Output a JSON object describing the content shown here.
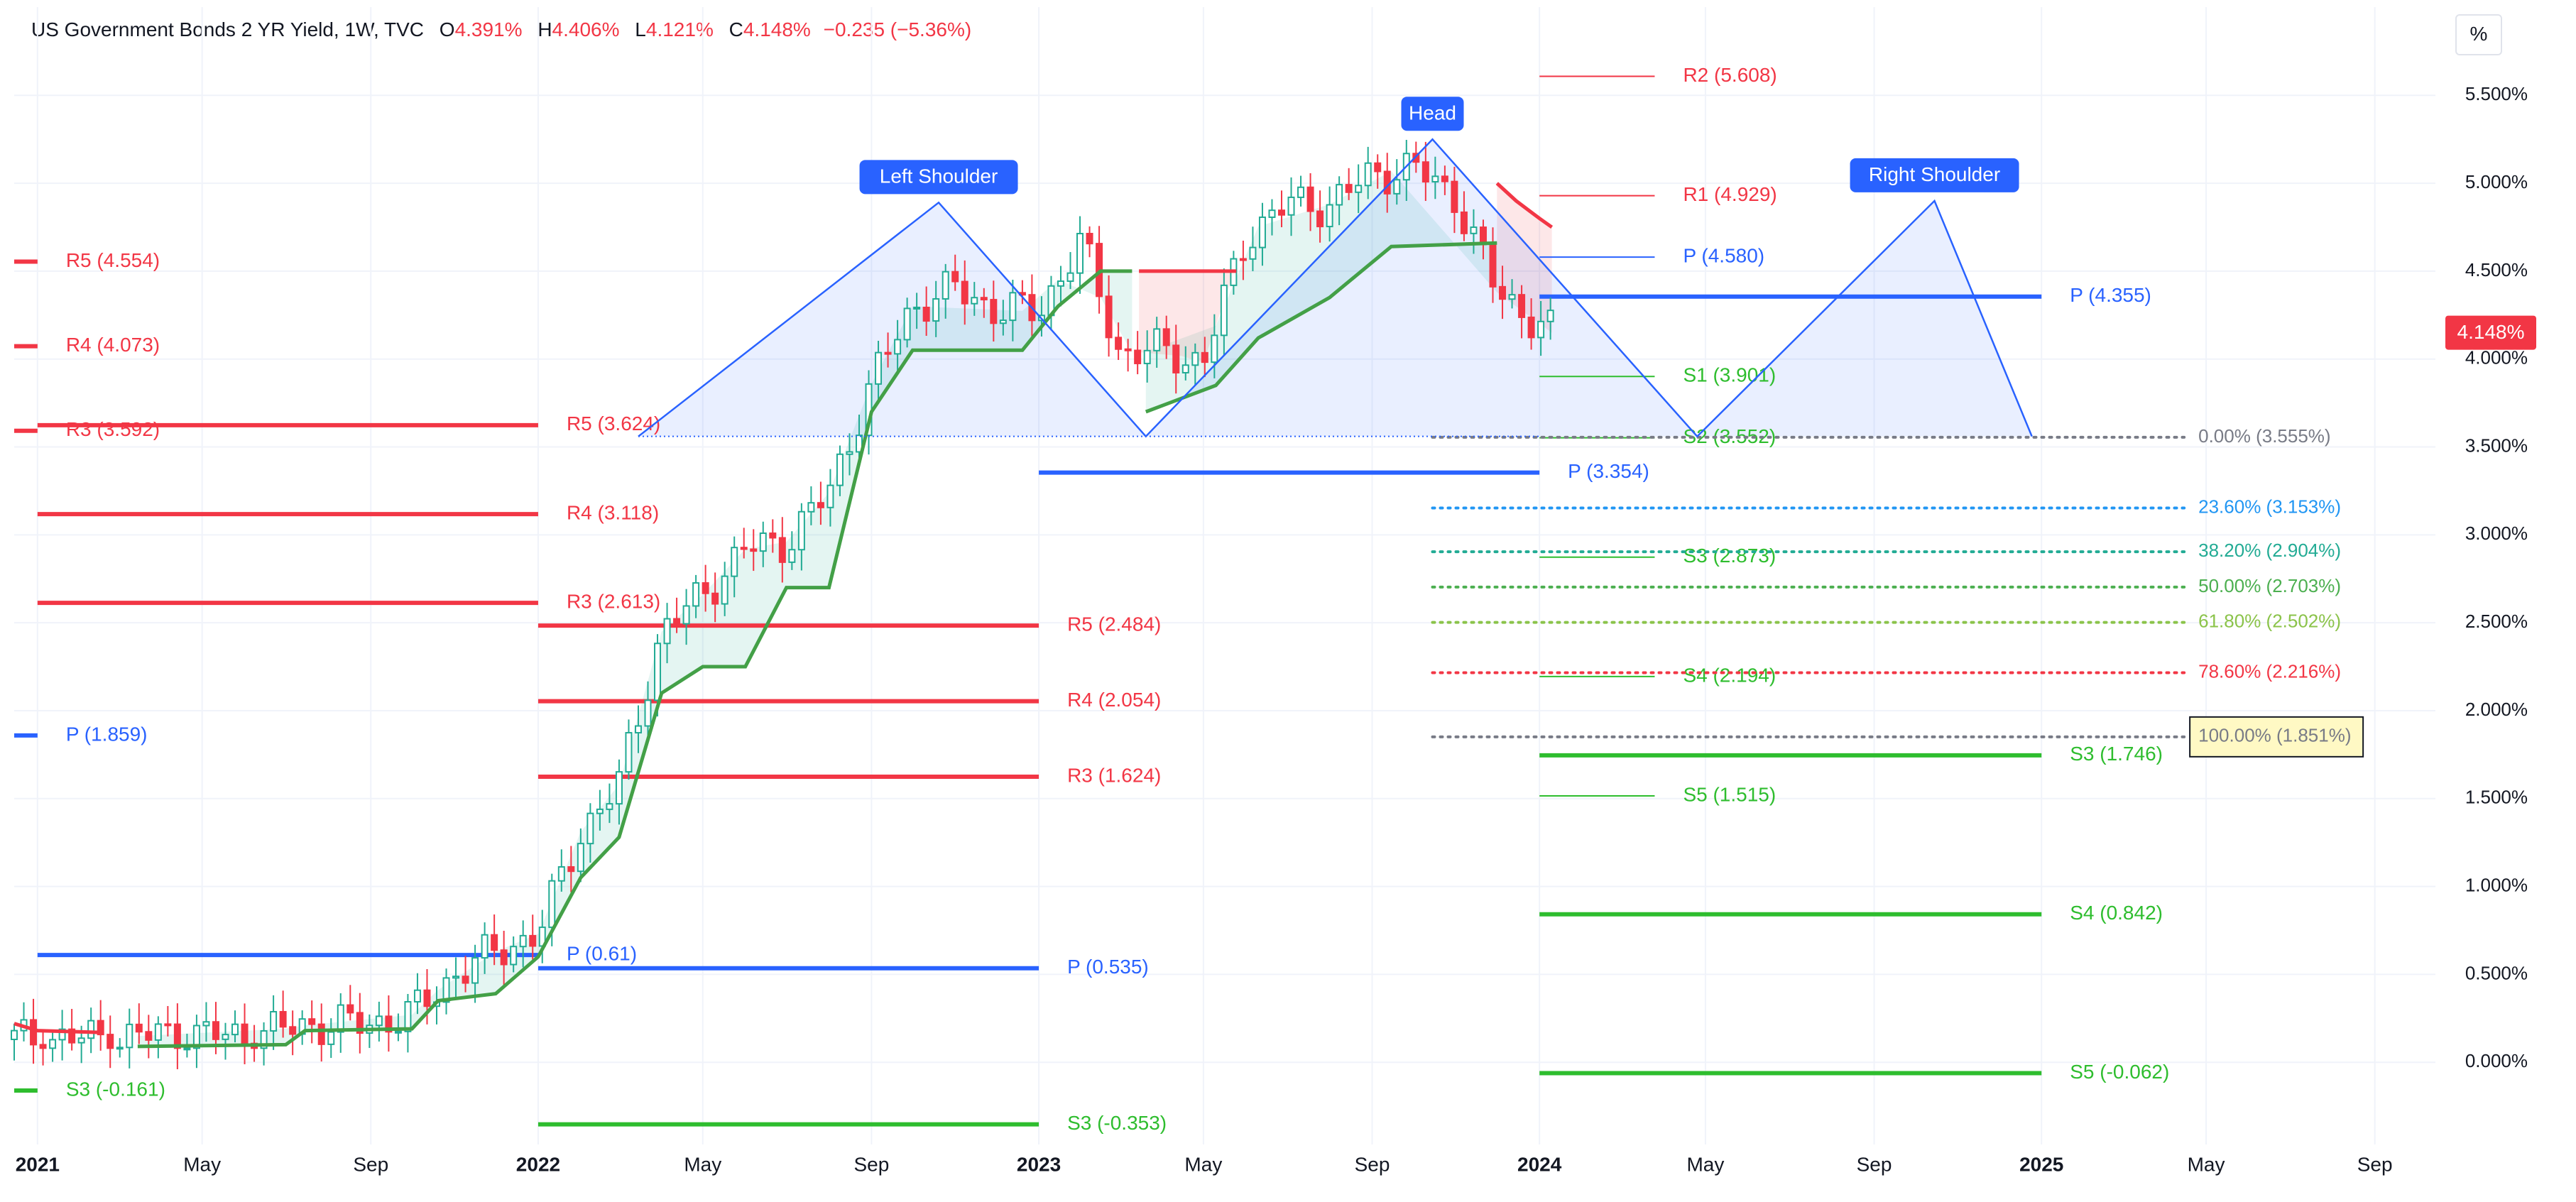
{
  "header": {
    "title": "US Government Bonds 2 YR Yield, 1W, TVC",
    "o_label": "O",
    "o_value": "4.391%",
    "h_label": "H",
    "h_value": "4.406%",
    "l_label": "L",
    "l_value": "4.121%",
    "c_label": "C",
    "c_value": "4.148%",
    "change": "−0.235 (−5.36%)"
  },
  "unit_button": "%",
  "last_price": "4.148%",
  "chart_data": {
    "type": "candlestick",
    "timeframe": "1W",
    "x_range": [
      "2020-12-15",
      "2025-10-10"
    ],
    "y_range": [
      -0.5,
      5.8
    ],
    "y_ticks": [
      "5.500%",
      "5.000%",
      "4.500%",
      "4.000%",
      "3.500%",
      "3.000%",
      "2.500%",
      "2.000%",
      "1.500%",
      "1.000%",
      "0.500%",
      "0.000%"
    ],
    "y_tick_values": [
      5.5,
      5.0,
      4.5,
      4.0,
      3.5,
      3.0,
      2.5,
      2.0,
      1.5,
      1.0,
      0.5,
      0.0
    ],
    "x_ticks": [
      {
        "label": "2021",
        "date": "2021-01-01",
        "bold": true
      },
      {
        "label": "May",
        "date": "2021-05-01",
        "bold": false
      },
      {
        "label": "Sep",
        "date": "2021-09-01",
        "bold": false
      },
      {
        "label": "2022",
        "date": "2022-01-01",
        "bold": true
      },
      {
        "label": "May",
        "date": "2022-05-01",
        "bold": false
      },
      {
        "label": "Sep",
        "date": "2022-09-01",
        "bold": false
      },
      {
        "label": "2023",
        "date": "2023-01-01",
        "bold": true
      },
      {
        "label": "May",
        "date": "2023-05-01",
        "bold": false
      },
      {
        "label": "Sep",
        "date": "2023-09-01",
        "bold": false
      },
      {
        "label": "2024",
        "date": "2024-01-01",
        "bold": true
      },
      {
        "label": "May",
        "date": "2024-05-01",
        "bold": false
      },
      {
        "label": "Sep",
        "date": "2024-09-01",
        "bold": false
      },
      {
        "label": "2025",
        "date": "2025-01-01",
        "bold": true
      },
      {
        "label": "May",
        "date": "2025-05-01",
        "bold": false
      },
      {
        "label": "Sep",
        "date": "2025-09-01",
        "bold": false
      }
    ],
    "price_path": [
      [
        "2020-12-15",
        0.13
      ],
      [
        "2021-03-01",
        0.14
      ],
      [
        "2021-04-01",
        0.16
      ],
      [
        "2021-06-01",
        0.15
      ],
      [
        "2021-07-15",
        0.21
      ],
      [
        "2021-09-01",
        0.22
      ],
      [
        "2021-10-01",
        0.27
      ],
      [
        "2021-11-01",
        0.5
      ],
      [
        "2021-12-01",
        0.63
      ],
      [
        "2022-01-01",
        0.73
      ],
      [
        "2022-02-01",
        1.31
      ],
      [
        "2022-03-01",
        1.58
      ],
      [
        "2022-04-01",
        2.45
      ],
      [
        "2022-05-01",
        2.66
      ],
      [
        "2022-06-01",
        2.92
      ],
      [
        "2022-07-01",
        2.96
      ],
      [
        "2022-08-01",
        3.24
      ],
      [
        "2022-09-01",
        3.86
      ],
      [
        "2022-10-01",
        4.3
      ],
      [
        "2022-11-01",
        4.4
      ],
      [
        "2022-12-01",
        4.28
      ],
      [
        "2023-01-01",
        4.27
      ],
      [
        "2023-02-01",
        4.67
      ],
      [
        "2023-03-01",
        4.03
      ],
      [
        "2023-04-01",
        4.05
      ],
      [
        "2023-05-01",
        3.98
      ],
      [
        "2023-06-01",
        4.7
      ],
      [
        "2023-07-01",
        4.88
      ],
      [
        "2023-08-01",
        4.88
      ],
      [
        "2023-09-01",
        5.05
      ],
      [
        "2023-10-01",
        5.09
      ],
      [
        "2023-11-01",
        4.92
      ],
      [
        "2023-12-01",
        4.38
      ],
      [
        "2024-01-10",
        4.15
      ]
    ],
    "supertrend_up": [
      [
        "2021-03-15",
        0.09
      ],
      [
        "2021-07-01",
        0.1
      ],
      [
        "2021-07-15",
        0.18
      ],
      [
        "2021-10-01",
        0.19
      ],
      [
        "2021-10-20",
        0.35
      ],
      [
        "2021-12-01",
        0.39
      ],
      [
        "2022-01-01",
        0.6
      ],
      [
        "2022-02-01",
        1.05
      ],
      [
        "2022-03-01",
        1.28
      ],
      [
        "2022-04-01",
        2.1
      ],
      [
        "2022-05-01",
        2.25
      ],
      [
        "2022-06-01",
        2.25
      ],
      [
        "2022-07-01",
        2.7
      ],
      [
        "2022-08-01",
        2.7
      ],
      [
        "2022-09-01",
        3.7
      ],
      [
        "2022-10-01",
        4.05
      ],
      [
        "2022-12-20",
        4.05
      ],
      [
        "2023-01-15",
        4.3
      ],
      [
        "2023-02-15",
        4.5
      ],
      [
        "2023-03-10",
        4.5
      ]
    ],
    "supertrend_up_2": [
      [
        "2023-03-20",
        3.7
      ],
      [
        "2023-05-10",
        3.85
      ],
      [
        "2023-06-10",
        4.12
      ],
      [
        "2023-08-01",
        4.35
      ],
      [
        "2023-09-15",
        4.64
      ],
      [
        "2023-12-01",
        4.66
      ]
    ],
    "supertrend_down": [
      [
        "2020-12-15",
        0.22
      ],
      [
        "2021-01-01",
        0.18
      ],
      [
        "2021-02-15",
        0.17
      ]
    ],
    "supertrend_down_2": [
      [
        "2023-03-15",
        4.5
      ],
      [
        "2023-04-15",
        4.5
      ],
      [
        "2023-05-01",
        4.5
      ],
      [
        "2023-05-25",
        4.5
      ]
    ],
    "supertrend_down_3": [
      [
        "2023-12-01",
        5.0
      ],
      [
        "2023-12-15",
        4.9
      ],
      [
        "2024-01-01",
        4.8
      ],
      [
        "2024-01-10",
        4.75
      ]
    ],
    "head_shoulders": [
      [
        "2022-03-15",
        3.56
      ],
      [
        "2022-10-20",
        4.89
      ],
      [
        "2023-03-20",
        3.56
      ],
      [
        "2023-10-15",
        5.25
      ],
      [
        "2024-04-25",
        3.56
      ],
      [
        "2024-10-15",
        4.9
      ],
      [
        "2024-12-25",
        3.56
      ]
    ],
    "pattern_labels": [
      {
        "text": "Left Shoulder",
        "date": "2022-10-20",
        "value": 4.89
      },
      {
        "text": "Head",
        "date": "2023-10-15",
        "value": 5.25
      },
      {
        "text": "Right Shoulder",
        "date": "2024-10-15",
        "value": 4.9
      }
    ],
    "neckline": {
      "x0": "2022-03-15",
      "x1": "2024-01-01",
      "value": 3.56
    },
    "pivots": [
      {
        "label": "R5 (4.554)",
        "value": 4.554,
        "kind": "r",
        "x0": "2020-12-15",
        "x1": "2021-01-01"
      },
      {
        "label": "R4 (4.073)",
        "value": 4.073,
        "kind": "r",
        "x0": "2020-12-15",
        "x1": "2021-01-01"
      },
      {
        "label": "R3 (3.592)",
        "value": 3.592,
        "kind": "r",
        "x0": "2020-12-15",
        "x1": "2021-01-01"
      },
      {
        "label": "P (1.859)",
        "value": 1.859,
        "kind": "p",
        "x0": "2020-12-15",
        "x1": "2021-01-01"
      },
      {
        "label": "S3 (-0.161)",
        "value": -0.161,
        "kind": "s",
        "x0": "2020-12-15",
        "x1": "2021-01-01"
      },
      {
        "label": "R5 (3.624)",
        "value": 3.624,
        "kind": "r",
        "x0": "2021-01-01",
        "x1": "2022-01-01"
      },
      {
        "label": "R4 (3.118)",
        "value": 3.118,
        "kind": "r",
        "x0": "2021-01-01",
        "x1": "2022-01-01"
      },
      {
        "label": "R3 (2.613)",
        "value": 2.613,
        "kind": "r",
        "x0": "2021-01-01",
        "x1": "2022-01-01"
      },
      {
        "label": "P (0.61)",
        "value": 0.61,
        "kind": "p",
        "x0": "2021-01-01",
        "x1": "2022-01-01"
      },
      {
        "label": "R5 (2.484)",
        "value": 2.484,
        "kind": "r",
        "x0": "2022-01-01",
        "x1": "2023-01-01"
      },
      {
        "label": "R4 (2.054)",
        "value": 2.054,
        "kind": "r",
        "x0": "2022-01-01",
        "x1": "2023-01-01"
      },
      {
        "label": "R3 (1.624)",
        "value": 1.624,
        "kind": "r",
        "x0": "2022-01-01",
        "x1": "2023-01-01"
      },
      {
        "label": "P (0.535)",
        "value": 0.535,
        "kind": "p",
        "x0": "2022-01-01",
        "x1": "2023-01-01"
      },
      {
        "label": "S3 (-0.353)",
        "value": -0.353,
        "kind": "s",
        "x0": "2022-01-01",
        "x1": "2023-01-01"
      },
      {
        "label": "P (3.354)",
        "value": 3.354,
        "kind": "p",
        "x0": "2023-01-01",
        "x1": "2024-01-01"
      },
      {
        "label": "P (4.355)",
        "value": 4.355,
        "kind": "p",
        "x0": "2024-01-01",
        "x1": "2025-01-01"
      },
      {
        "label": "S3 (1.746)",
        "value": 1.746,
        "kind": "s",
        "x0": "2024-01-01",
        "x1": "2025-01-01"
      },
      {
        "label": "S4 (0.842)",
        "value": 0.842,
        "kind": "s",
        "x0": "2024-01-01",
        "x1": "2025-01-01"
      },
      {
        "label": "S5 (-0.062)",
        "value": -0.062,
        "kind": "s",
        "x0": "2024-01-01",
        "x1": "2025-01-01"
      }
    ],
    "monthly_pivots": [
      {
        "label": "R2 (5.608)",
        "value": 5.608,
        "kind": "r"
      },
      {
        "label": "R1 (4.929)",
        "value": 4.929,
        "kind": "r"
      },
      {
        "label": "P (4.580)",
        "value": 4.58,
        "kind": "p"
      },
      {
        "label": "S1 (3.901)",
        "value": 3.901,
        "kind": "s"
      },
      {
        "label": "S2 (3.552)",
        "value": 3.552,
        "kind": "s"
      },
      {
        "label": "S3 (2.873)",
        "value": 2.873,
        "kind": "s"
      },
      {
        "label": "S4 (2.194)",
        "value": 2.194,
        "kind": "s"
      },
      {
        "label": "S5 (1.515)",
        "value": 1.515,
        "kind": "s"
      }
    ],
    "monthly_pivot_range": [
      "2024-01-01",
      "2024-03-25"
    ],
    "fib_range": [
      "2023-10-15",
      "2025-04-15"
    ],
    "fib_levels": [
      {
        "label": "0.00% (3.555%)",
        "value": 3.555,
        "color": "#787b86"
      },
      {
        "label": "23.60% (3.153%)",
        "value": 3.153,
        "color": "#2196f3"
      },
      {
        "label": "38.20% (2.904%)",
        "value": 2.904,
        "color": "#22ab94"
      },
      {
        "label": "50.00% (2.703%)",
        "value": 2.703,
        "color": "#4caf50"
      },
      {
        "label": "61.80% (2.502%)",
        "value": 2.502,
        "color": "#8bc34a"
      },
      {
        "label": "78.60% (2.216%)",
        "value": 2.216,
        "color": "#f23645"
      },
      {
        "label": "100.00% (1.851%)",
        "value": 1.851,
        "color": "#787b86",
        "boxed": true
      }
    ],
    "colors": {
      "up": "#22ab94",
      "down": "#f23645",
      "pivot_r": "#f23645",
      "pivot_p": "#2962ff",
      "pivot_s": "#2ebd2e",
      "pattern": "#2962ff",
      "supertrend_up": "#43a047",
      "supertrend_down": "#f23645"
    }
  }
}
